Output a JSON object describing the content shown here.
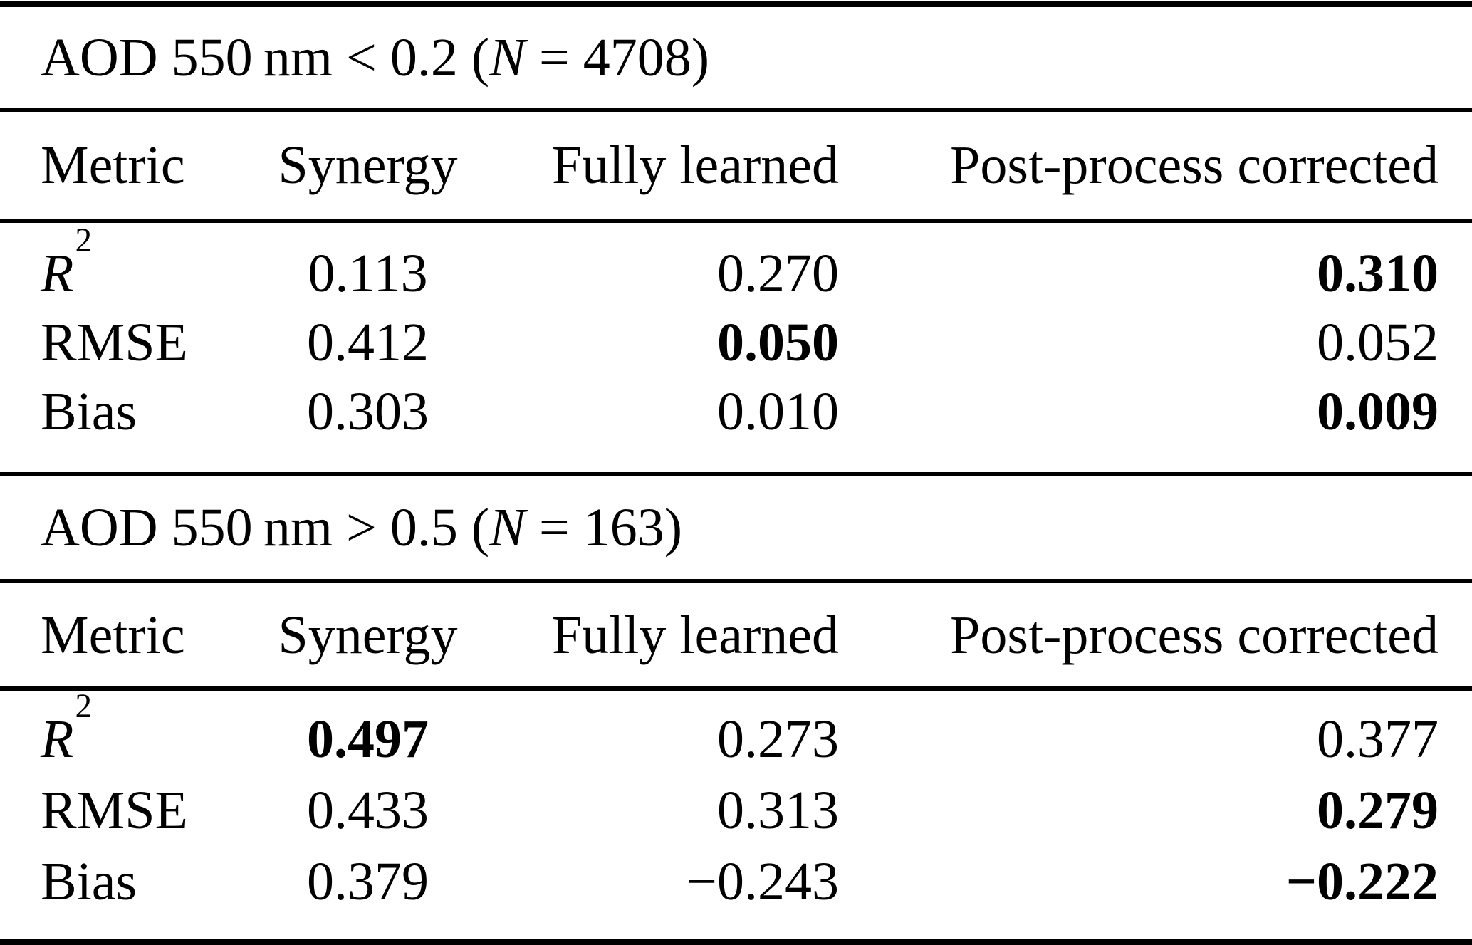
{
  "tables": [
    {
      "title": {
        "pre": "AOD 550 nm < 0.2 (",
        "var": "N",
        "post": " = 4708)"
      },
      "columns": [
        "Metric",
        "Synergy",
        "Fully learned",
        "Post-process corrected"
      ],
      "rows": [
        {
          "metric": {
            "base": "R",
            "sup": "2"
          },
          "values": [
            {
              "text": "0.113",
              "bold": false
            },
            {
              "text": "0.270",
              "bold": false
            },
            {
              "text": "0.310",
              "bold": true
            }
          ]
        },
        {
          "metric": {
            "base": "RMSE"
          },
          "values": [
            {
              "text": "0.412",
              "bold": false
            },
            {
              "text": "0.050",
              "bold": true
            },
            {
              "text": "0.052",
              "bold": false
            }
          ]
        },
        {
          "metric": {
            "base": "Bias"
          },
          "values": [
            {
              "text": "0.303",
              "bold": false
            },
            {
              "text": "0.010",
              "bold": false
            },
            {
              "text": "0.009",
              "bold": true
            }
          ]
        }
      ]
    },
    {
      "title": {
        "pre": "AOD 550 nm > 0.5 (",
        "var": "N",
        "post": " = 163)"
      },
      "columns": [
        "Metric",
        "Synergy",
        "Fully learned",
        "Post-process corrected"
      ],
      "rows": [
        {
          "metric": {
            "base": "R",
            "sup": "2"
          },
          "values": [
            {
              "text": "0.497",
              "bold": true
            },
            {
              "text": "0.273",
              "bold": false
            },
            {
              "text": "0.377",
              "bold": false
            }
          ]
        },
        {
          "metric": {
            "base": "RMSE"
          },
          "values": [
            {
              "text": "0.433",
              "bold": false
            },
            {
              "text": "0.313",
              "bold": false
            },
            {
              "text": "0.279",
              "bold": true
            }
          ]
        },
        {
          "metric": {
            "base": "Bias"
          },
          "values": [
            {
              "text": "0.379",
              "bold": false
            },
            {
              "text": "−0.243",
              "bold": false
            },
            {
              "text": "−0.222",
              "bold": true
            }
          ]
        }
      ]
    }
  ],
  "colors": {
    "text": "#000000",
    "background": "#ffffff",
    "rule": "#000000"
  }
}
